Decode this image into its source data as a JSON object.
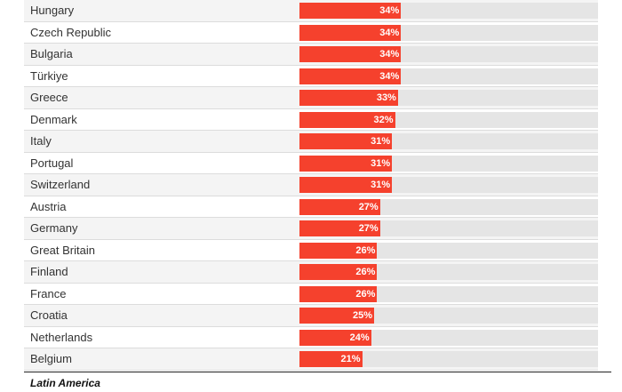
{
  "chart_data": {
    "type": "bar",
    "orientation": "horizontal",
    "categories": [
      "Hungary",
      "Czech Republic",
      "Bulgaria",
      "Türkiye",
      "Greece",
      "Denmark",
      "Italy",
      "Portugal",
      "Switzerland",
      "Austria",
      "Germany",
      "Great Britain",
      "Finland",
      "France",
      "Croatia",
      "Netherlands",
      "Belgium"
    ],
    "values": [
      34,
      34,
      34,
      34,
      33,
      32,
      31,
      31,
      31,
      27,
      27,
      26,
      26,
      26,
      25,
      24,
      21
    ],
    "value_labels": [
      "34%",
      "34%",
      "34%",
      "34%",
      "33%",
      "32%",
      "31%",
      "31%",
      "31%",
      "27%",
      "27%",
      "26%",
      "26%",
      "26%",
      "25%",
      "24%",
      "21%"
    ],
    "xlim": [
      0,
      100
    ],
    "bar_color": "#f5412d",
    "track_color": "#e5e5e5"
  },
  "section_heading": "Latin America"
}
